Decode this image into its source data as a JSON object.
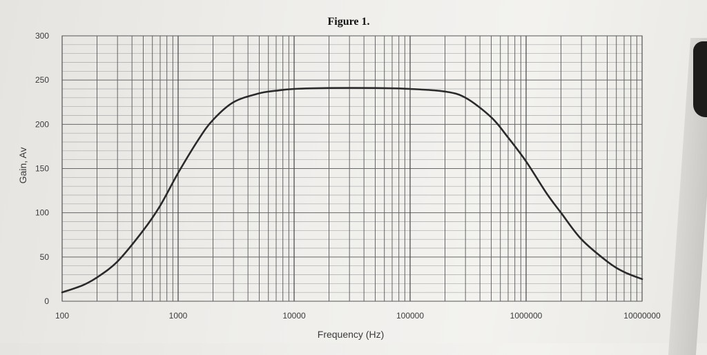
{
  "chart_data": {
    "type": "line",
    "title": "Figure 1.",
    "xlabel": "Frequency (Hz)",
    "ylabel": "Gain, Av",
    "xscale": "log",
    "xlim": [
      100,
      10000000
    ],
    "ylim": [
      0,
      300
    ],
    "xticks": [
      "100",
      "1000",
      "10000",
      "100000",
      "1000000",
      "10000000"
    ],
    "yticks": [
      "0",
      "50",
      "100",
      "150",
      "200",
      "250",
      "300"
    ],
    "grid": true,
    "series": [
      {
        "name": "Gain",
        "color": "#2a2a2a",
        "x": [
          100,
          150,
          200,
          300,
          500,
          700,
          1000,
          1500,
          2000,
          3000,
          5000,
          7000,
          10000,
          20000,
          50000,
          100000,
          200000,
          300000,
          500000,
          700000,
          1000000,
          1500000,
          2000000,
          3000000,
          5000000,
          7000000,
          10000000
        ],
        "y": [
          10,
          18,
          27,
          45,
          80,
          108,
          145,
          183,
          205,
          225,
          235,
          238,
          240,
          241,
          241,
          240,
          237,
          230,
          208,
          185,
          158,
          122,
          100,
          70,
          45,
          33,
          25
        ]
      }
    ]
  }
}
